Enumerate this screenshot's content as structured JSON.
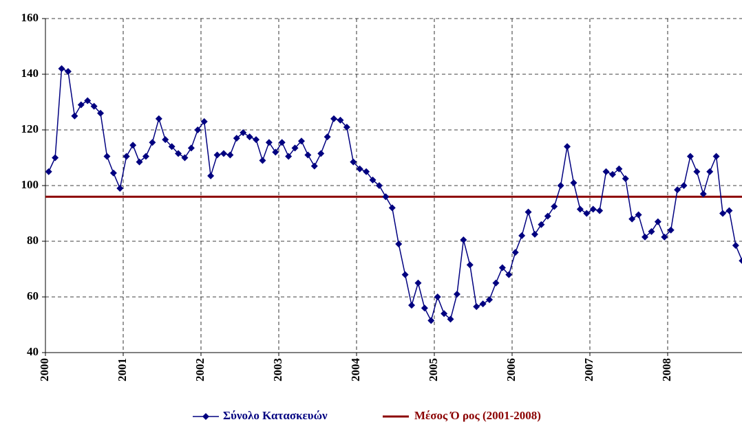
{
  "chart_data": {
    "type": "line",
    "categories": [
      "2000",
      null,
      null,
      null,
      null,
      null,
      null,
      null,
      null,
      null,
      null,
      null,
      "2001",
      null,
      null,
      null,
      null,
      null,
      null,
      null,
      null,
      null,
      null,
      null,
      "2002",
      null,
      null,
      null,
      null,
      null,
      null,
      null,
      null,
      null,
      null,
      null,
      "2003",
      null,
      null,
      null,
      null,
      null,
      null,
      null,
      null,
      null,
      null,
      null,
      "2004",
      null,
      null,
      null,
      null,
      null,
      null,
      null,
      null,
      null,
      null,
      null,
      "2005",
      null,
      null,
      null,
      null,
      null,
      null,
      null,
      null,
      null,
      null,
      null,
      "2006",
      null,
      null,
      null,
      null,
      null,
      null,
      null,
      null,
      null,
      null,
      null,
      "2007",
      null,
      null,
      null,
      null,
      null,
      null,
      null,
      null,
      null,
      null,
      null,
      "2008",
      null,
      null,
      null,
      null,
      null,
      null,
      null,
      null,
      null,
      null,
      null
    ],
    "series": [
      {
        "name": "Σύνολο Κατασκευών",
        "color": "#000080",
        "values": [
          105,
          110,
          142,
          141,
          125,
          129,
          130.5,
          128.5,
          126,
          110.5,
          104.5,
          99,
          110.5,
          114.5,
          108.5,
          110.5,
          115.5,
          124,
          116.5,
          114,
          111.5,
          110,
          113.5,
          120,
          123,
          103.5,
          111,
          111.5,
          111,
          117,
          119,
          117.5,
          116.5,
          109,
          115.5,
          112,
          115.5,
          110.5,
          113.5,
          116,
          111,
          107,
          111.5,
          117.5,
          124,
          123.5,
          121,
          108.5,
          106,
          105,
          102,
          100,
          96,
          92,
          79,
          68,
          57,
          65,
          56,
          51.5,
          60,
          54,
          52,
          61,
          80.5,
          71.5,
          56.5,
          57.5,
          59,
          65,
          70.5,
          68,
          76,
          82,
          90.5,
          82.5,
          86,
          89,
          92.5,
          100,
          114,
          101,
          91.5,
          90,
          91.5,
          91,
          105,
          104,
          106,
          102.5,
          88,
          89.5,
          81.5,
          83.5,
          87,
          81.5,
          84,
          98.5,
          100,
          110.5,
          105,
          97,
          105,
          110.5,
          90,
          91,
          78.5,
          73
        ]
      }
    ],
    "reference_line": {
      "name": "Μέσος Ό ρος (2001-2008)",
      "color": "#8b0000",
      "value": 96
    },
    "ylim": [
      40,
      160
    ],
    "yticks": [
      40,
      60,
      80,
      100,
      120,
      140,
      160
    ],
    "grid": true
  }
}
